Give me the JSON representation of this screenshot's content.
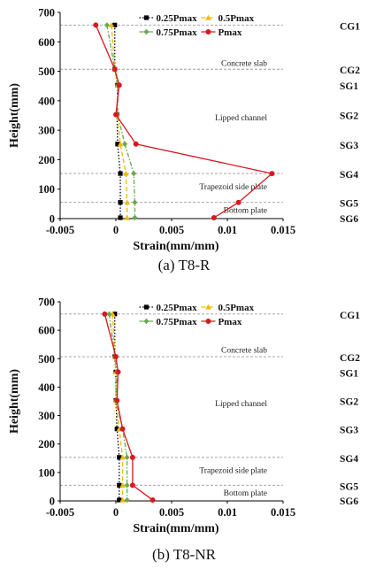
{
  "colors": {
    "p025": "#000000",
    "p05": "#f2b800",
    "p075": "#6aa84f",
    "pmax": "#d71920",
    "grid": "#9a9a9a"
  },
  "chart_data": [
    {
      "type": "line",
      "caption": "(a) T8-R",
      "xlabel": "Strain(mm/mm)",
      "ylabel": "Height(mm)",
      "xlim": [
        -0.005,
        0.015
      ],
      "ylim": [
        0,
        700
      ],
      "xticks": [
        "-0.005",
        "0",
        "0.005",
        "0.01",
        "0.015"
      ],
      "yticks": [
        "0",
        "100",
        "200",
        "300",
        "400",
        "500",
        "600",
        "700"
      ],
      "legend_position": "top-right",
      "gauges": [
        {
          "label": "CG1",
          "height": 657
        },
        {
          "label": "CG2",
          "height": 507
        },
        {
          "label": "SG1",
          "height": 453
        },
        {
          "label": "SG2",
          "height": 353
        },
        {
          "label": "SG3",
          "height": 253
        },
        {
          "label": "SG4",
          "height": 153
        },
        {
          "label": "SG5",
          "height": 55
        },
        {
          "label": "SG6",
          "height": 3
        }
      ],
      "reference_lines": [
        {
          "height": 657
        },
        {
          "height": 507,
          "label": "Concrete slab",
          "label_height": 527
        },
        {
          "height": 153
        },
        {
          "height": 55
        }
      ],
      "region_labels": [
        {
          "text": "Lipped channel",
          "height": 342
        },
        {
          "text": "Trapezoid side plate",
          "height": 108
        },
        {
          "text": "Bottom plate",
          "height": 28
        }
      ],
      "series": [
        {
          "name": "0.25Pmax",
          "color_key": "p025",
          "marker": "square",
          "dash": "dot",
          "x": [
            -0.0001,
            -0.0001,
            0.00015,
            0.0001,
            0.00015,
            0.0004,
            0.0004,
            0.0004
          ],
          "y": [
            657,
            507,
            453,
            353,
            253,
            153,
            55,
            3
          ]
        },
        {
          "name": "0.5Pmax",
          "color_key": "p05",
          "marker": "triangle",
          "dash": "dash",
          "x": [
            -0.0004,
            -0.0001,
            0.00015,
            0.0001,
            0.0004,
            0.0009,
            0.001,
            0.001
          ],
          "y": [
            657,
            507,
            453,
            353,
            253,
            153,
            55,
            3
          ]
        },
        {
          "name": "0.75Pmax",
          "color_key": "p075",
          "marker": "diamond",
          "dash": "dashdot",
          "x": [
            -0.0008,
            -0.0001,
            0.0002,
            0.00015,
            0.0008,
            0.0016,
            0.0017,
            0.0017
          ],
          "y": [
            657,
            507,
            453,
            353,
            253,
            153,
            55,
            3
          ]
        },
        {
          "name": "Pmax",
          "color_key": "pmax",
          "marker": "circle",
          "dash": "solid",
          "x": [
            -0.0018,
            -0.0001,
            0.0003,
            0.0,
            0.0018,
            0.014,
            0.011,
            0.0088
          ],
          "y": [
            657,
            507,
            453,
            353,
            253,
            153,
            55,
            3
          ]
        }
      ]
    },
    {
      "type": "line",
      "caption": "(b) T8-NR",
      "xlabel": "Strain(mm/mm)",
      "ylabel": "Height(mm)",
      "xlim": [
        -0.005,
        0.015
      ],
      "ylim": [
        0,
        700
      ],
      "xticks": [
        "-0.005",
        "0",
        "0.005",
        "0.01",
        "0.015"
      ],
      "yticks": [
        "0",
        "100",
        "200",
        "300",
        "400",
        "500",
        "600",
        "700"
      ],
      "legend_position": "top-right",
      "gauges": [
        {
          "label": "CG1",
          "height": 657
        },
        {
          "label": "CG2",
          "height": 507
        },
        {
          "label": "SG1",
          "height": 453
        },
        {
          "label": "SG2",
          "height": 353
        },
        {
          "label": "SG3",
          "height": 253
        },
        {
          "label": "SG4",
          "height": 153
        },
        {
          "label": "SG5",
          "height": 55
        },
        {
          "label": "SG6",
          "height": 3
        }
      ],
      "reference_lines": [
        {
          "height": 657
        },
        {
          "height": 507,
          "label": "Concrete slab",
          "label_height": 530
        },
        {
          "height": 153
        },
        {
          "height": 55
        }
      ],
      "region_labels": [
        {
          "text": "Lipped channel",
          "height": 342
        },
        {
          "text": "Trapezoid side plate",
          "height": 108
        },
        {
          "text": "Bottom plate",
          "height": 28
        }
      ],
      "series": [
        {
          "name": "0.25Pmax",
          "color_key": "p025",
          "marker": "square",
          "dash": "dot",
          "x": [
            -0.0001,
            -0.0001,
            0.0,
            0.0,
            0.0001,
            0.0003,
            0.0003,
            0.0003
          ],
          "y": [
            657,
            507,
            453,
            353,
            253,
            153,
            55,
            3
          ]
        },
        {
          "name": "0.5Pmax",
          "color_key": "p05",
          "marker": "triangle",
          "dash": "dash",
          "x": [
            -0.0003,
            -0.0001,
            0.0,
            0.0,
            0.0003,
            0.0006,
            0.0006,
            0.0006
          ],
          "y": [
            657,
            507,
            453,
            353,
            253,
            153,
            55,
            3
          ]
        },
        {
          "name": "0.75Pmax",
          "color_key": "p075",
          "marker": "diamond",
          "dash": "dashdot",
          "x": [
            -0.0006,
            -0.0001,
            0.0001,
            0.0,
            0.0006,
            0.001,
            0.001,
            0.001
          ],
          "y": [
            657,
            507,
            453,
            353,
            253,
            153,
            55,
            3
          ]
        },
        {
          "name": "Pmax",
          "color_key": "pmax",
          "marker": "circle",
          "dash": "solid",
          "x": [
            -0.001,
            0.0,
            0.0002,
            0.0001,
            0.0006,
            0.0015,
            0.0015,
            0.0033
          ],
          "y": [
            657,
            507,
            453,
            353,
            253,
            153,
            55,
            3
          ]
        }
      ]
    }
  ]
}
